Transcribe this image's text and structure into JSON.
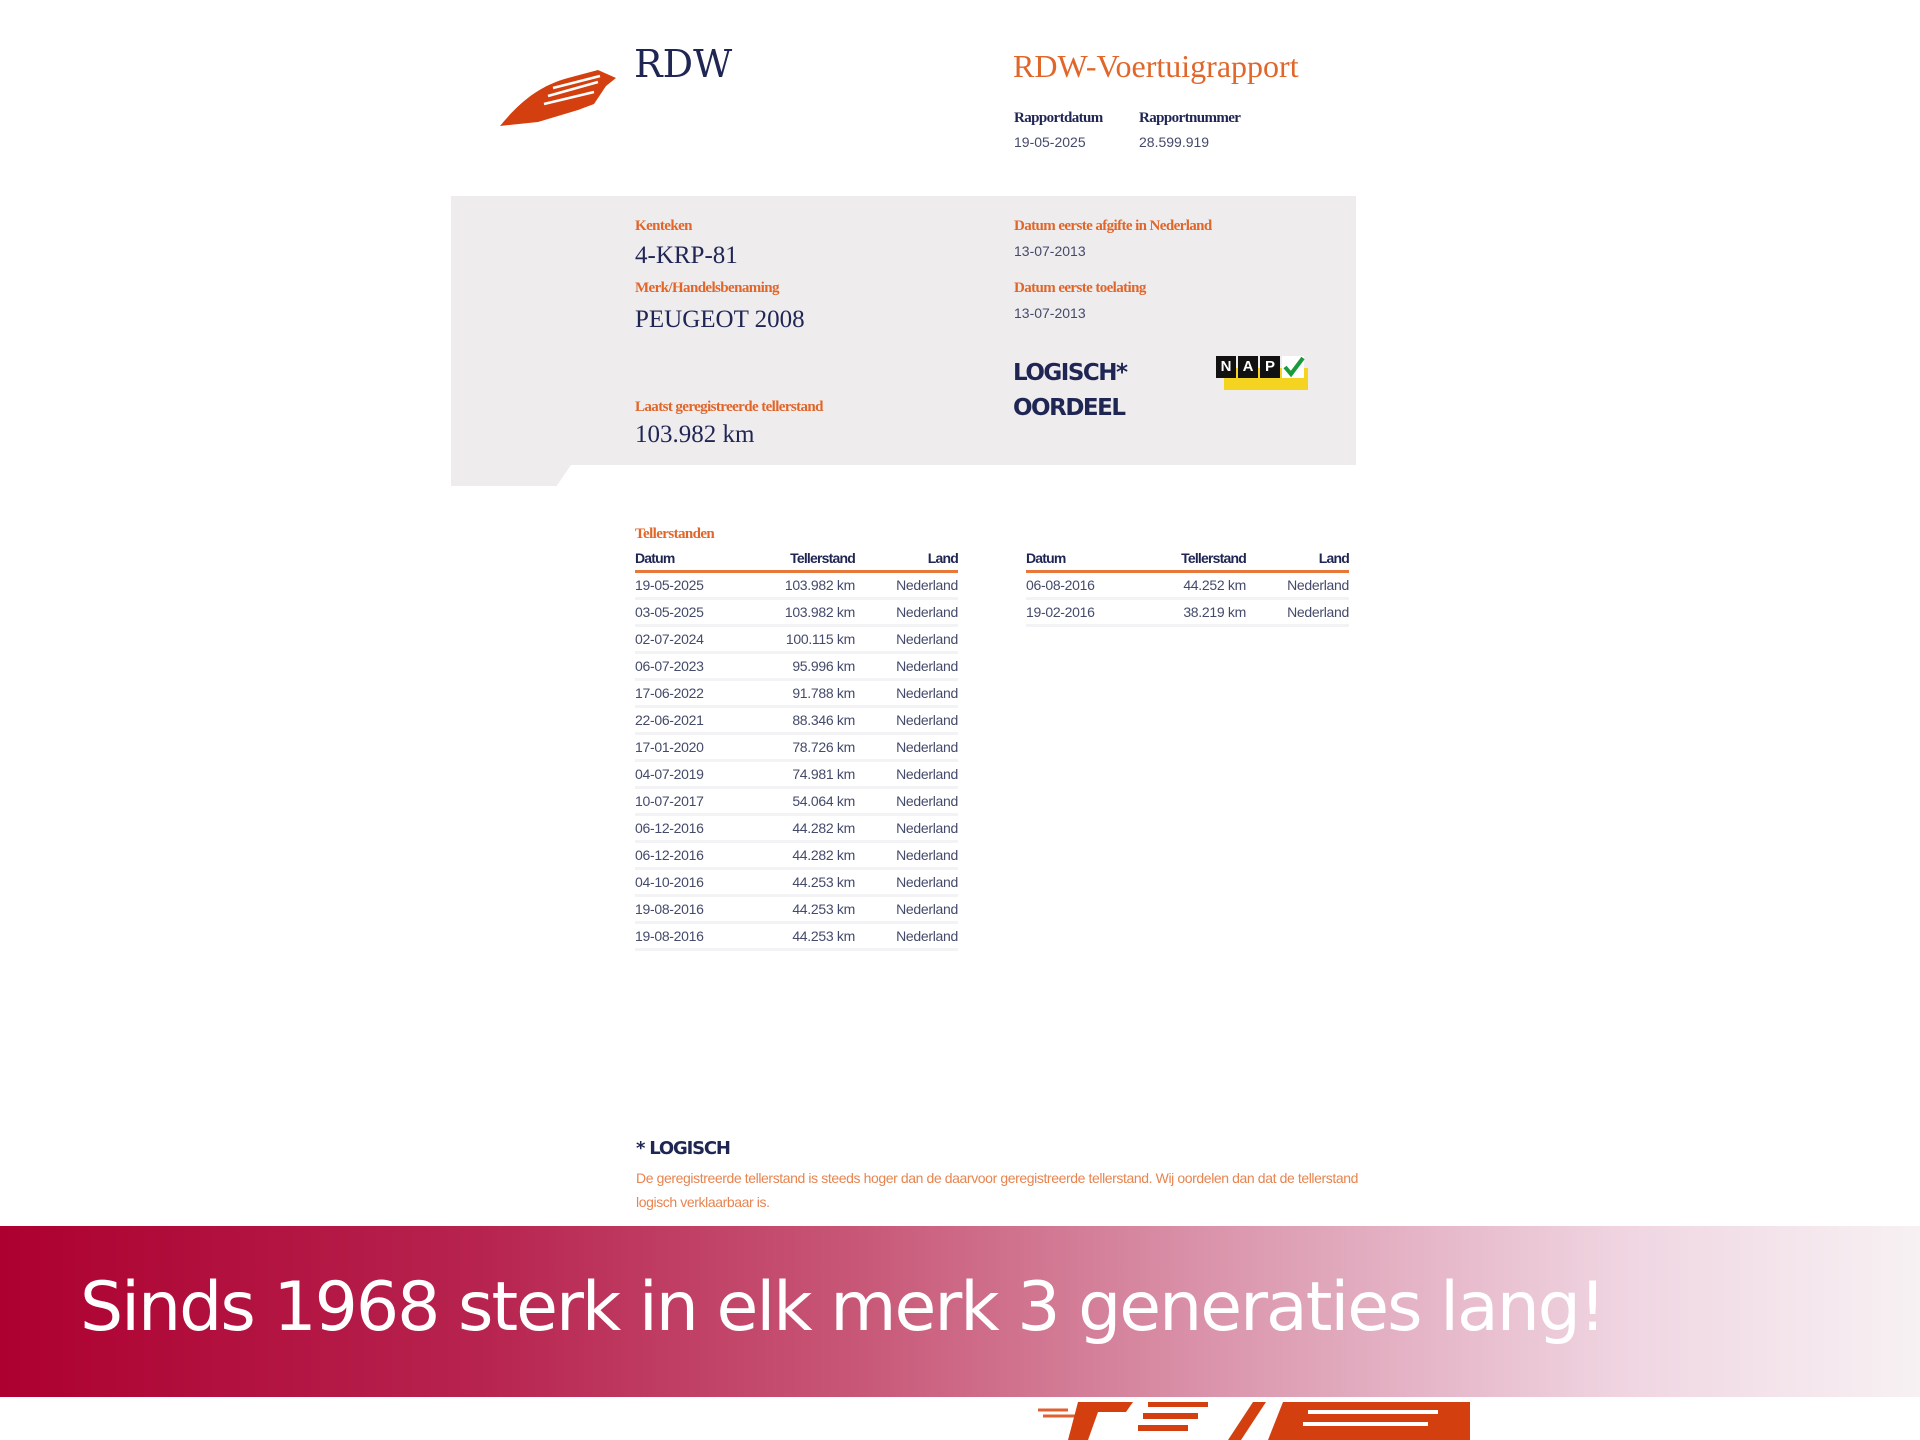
{
  "header": {
    "logo_text": "RDW",
    "title": "RDW-Voertuigrapport",
    "rapportdatum_label": "Rapportdatum",
    "rapportdatum": "19-05-2025",
    "rapportnummer_label": "Rapportnummer",
    "rapportnummer": "28.599.919"
  },
  "vehicle": {
    "kenteken_label": "Kenteken",
    "kenteken": "4-KRP-81",
    "merk_label": "Merk/Handelsbenaming",
    "merk": "PEUGEOT 2008",
    "teller_label": "Laatst geregistreerde tellerstand",
    "teller": "103.982 km",
    "afgifte_label": "Datum eerste afgifte in Nederland",
    "afgifte": "13-07-2013",
    "toelating_label": "Datum eerste toelating",
    "toelating": "13-07-2013",
    "verdict_1": "LOGISCH*",
    "verdict_2": "OORDEEL",
    "nap_letters": [
      "N",
      "A",
      "P"
    ]
  },
  "tellerstanden": {
    "title": "Tellerstanden",
    "columns": [
      "Datum",
      "Tellerstand",
      "Land"
    ],
    "left": [
      [
        "19-05-2025",
        "103.982 km",
        "Nederland"
      ],
      [
        "03-05-2025",
        "103.982 km",
        "Nederland"
      ],
      [
        "02-07-2024",
        "100.115 km",
        "Nederland"
      ],
      [
        "06-07-2023",
        "95.996 km",
        "Nederland"
      ],
      [
        "17-06-2022",
        "91.788 km",
        "Nederland"
      ],
      [
        "22-06-2021",
        "88.346 km",
        "Nederland"
      ],
      [
        "17-01-2020",
        "78.726 km",
        "Nederland"
      ],
      [
        "04-07-2019",
        "74.981 km",
        "Nederland"
      ],
      [
        "10-07-2017",
        "54.064 km",
        "Nederland"
      ],
      [
        "06-12-2016",
        "44.282 km",
        "Nederland"
      ],
      [
        "06-12-2016",
        "44.282 km",
        "Nederland"
      ],
      [
        "04-10-2016",
        "44.253 km",
        "Nederland"
      ],
      [
        "19-08-2016",
        "44.253 km",
        "Nederland"
      ],
      [
        "19-08-2016",
        "44.253 km",
        "Nederland"
      ]
    ],
    "right": [
      [
        "06-08-2016",
        "44.252 km",
        "Nederland"
      ],
      [
        "19-02-2016",
        "38.219 km",
        "Nederland"
      ]
    ]
  },
  "footnote": {
    "title": "* LOGISCH",
    "text": "De geregistreerde tellerstand is steeds hoger dan de daarvoor geregistreerde tellerstand. Wij oordelen dan dat de tellerstand logisch verklaarbaar is."
  },
  "banner": {
    "slogan": "Sinds 1968 sterk in elk merk 3 generaties lang!"
  },
  "colors": {
    "navy": "#1f2654",
    "orange": "#e0662a",
    "banner_start": "#ad0030"
  }
}
